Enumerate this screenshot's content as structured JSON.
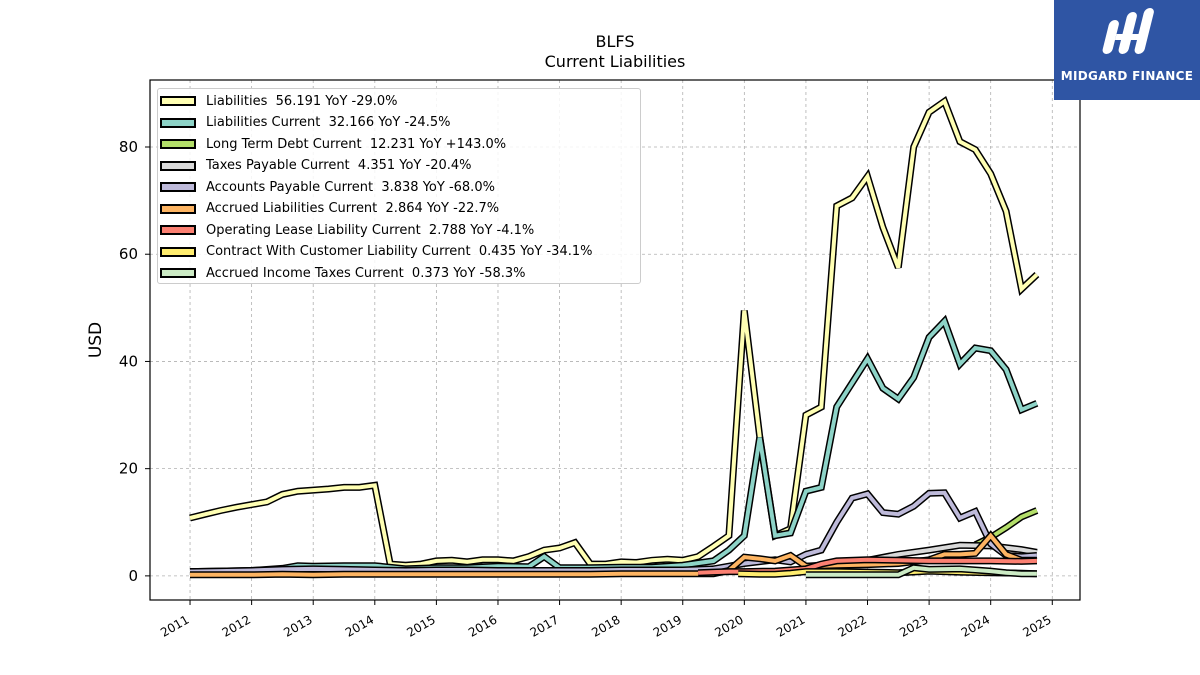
{
  "header": {
    "ticker": "BLFS",
    "subtitle": "Current  Liabilities"
  },
  "logo": {
    "text": "MIDGARD FINANCE",
    "icon": "midgard-logo-icon",
    "bg_color": "#2f55a4"
  },
  "chart_data": {
    "type": "line",
    "title": "BLFS",
    "subtitle": "Current  Liabilities",
    "ylabel": "USD",
    "xlabel": "",
    "xlim": [
      2010.35,
      2025.45
    ],
    "ylim": [
      -4.5,
      92.5
    ],
    "yticks": [
      0,
      20,
      40,
      60,
      80
    ],
    "xticks": [
      "2011",
      "2012",
      "2013",
      "2014",
      "2015",
      "2016",
      "2017",
      "2018",
      "2019",
      "2020",
      "2021",
      "2022",
      "2023",
      "2024",
      "2025"
    ],
    "grid": true,
    "legend_position": "top-left",
    "series": [
      {
        "name": "Liabilities  56.191 YoY -29.0%",
        "color": "#ffffb3",
        "x": [
          2011.0,
          2011.25,
          2011.5,
          2011.75,
          2012.0,
          2012.25,
          2012.5,
          2012.75,
          2013.0,
          2013.25,
          2013.5,
          2013.75,
          2014.0,
          2014.25,
          2014.5,
          2014.75,
          2015.0,
          2015.25,
          2015.5,
          2015.75,
          2016.0,
          2016.25,
          2016.5,
          2016.75,
          2017.0,
          2017.25,
          2017.5,
          2017.75,
          2018.0,
          2018.25,
          2018.5,
          2018.75,
          2019.0,
          2019.25,
          2019.5,
          2019.75,
          2020.0,
          2020.25,
          2020.5,
          2020.75,
          2021.0,
          2021.25,
          2021.5,
          2021.75,
          2022.0,
          2022.25,
          2022.5,
          2022.75,
          2023.0,
          2023.25,
          2023.5,
          2023.75,
          2024.0,
          2024.25,
          2024.5,
          2024.75
        ],
        "y": [
          10.8,
          11.5,
          12.2,
          12.8,
          13.3,
          13.8,
          15.2,
          15.8,
          16.0,
          16.2,
          16.5,
          16.5,
          16.9,
          2.2,
          2.0,
          2.2,
          2.8,
          2.9,
          2.6,
          3.0,
          3.0,
          2.8,
          3.6,
          4.8,
          5.2,
          6.2,
          2.2,
          2.2,
          2.6,
          2.5,
          2.9,
          3.1,
          2.9,
          3.6,
          5.5,
          7.5,
          49.5,
          26.0,
          7.5,
          8.8,
          30.0,
          31.5,
          69.0,
          70.5,
          74.5,
          65.0,
          57.5,
          80.0,
          86.5,
          88.5,
          81.0,
          79.5,
          75.0,
          68.0,
          53.5,
          56.2
        ]
      },
      {
        "name": "Liabilities Current  32.166 YoY -24.5%",
        "color": "#8dd3c7",
        "x": [
          2011.0,
          2011.5,
          2012.0,
          2012.5,
          2012.75,
          2013.0,
          2013.5,
          2014.0,
          2014.5,
          2015.0,
          2015.5,
          2016.0,
          2016.5,
          2016.75,
          2017.0,
          2017.5,
          2018.0,
          2018.5,
          2019.0,
          2019.5,
          2019.75,
          2020.0,
          2020.25,
          2020.5,
          2020.75,
          2021.0,
          2021.25,
          2021.5,
          2021.75,
          2022.0,
          2022.25,
          2022.5,
          2022.75,
          2023.0,
          2023.25,
          2023.5,
          2023.75,
          2024.0,
          2024.25,
          2024.5,
          2024.75
        ],
        "y": [
          0.8,
          0.9,
          1.0,
          1.4,
          1.9,
          1.8,
          1.9,
          1.9,
          1.3,
          1.5,
          1.5,
          1.8,
          1.7,
          3.6,
          1.5,
          1.5,
          1.6,
          1.6,
          2.0,
          2.8,
          4.8,
          7.5,
          25.8,
          7.5,
          8.0,
          15.8,
          16.5,
          31.5,
          36.0,
          40.5,
          35.0,
          33.0,
          37.0,
          44.5,
          47.5,
          39.5,
          42.5,
          42.0,
          38.5,
          31.0,
          32.2
        ]
      },
      {
        "name": "Long Term Debt Current  12.231 YoY +143.0%",
        "color": "#b3de69",
        "x": [
          2023.75,
          2024.0,
          2024.25,
          2024.5,
          2024.75
        ],
        "y": [
          5.8,
          7.2,
          9.0,
          11.0,
          12.2
        ]
      },
      {
        "name": "Taxes Payable Current  4.351 YoY -20.4%",
        "color": "#d9d9d9",
        "x": [
          2021.0,
          2021.5,
          2022.0,
          2022.5,
          2023.0,
          2023.5,
          2024.0,
          2024.5,
          2024.75
        ],
        "y": [
          1.8,
          2.2,
          2.9,
          4.0,
          4.8,
          5.7,
          5.6,
          4.9,
          4.4
        ]
      },
      {
        "name": "Accounts Payable Current  3.838 YoY -68.0%",
        "color": "#bebada",
        "x": [
          2011.0,
          2011.5,
          2012.0,
          2012.5,
          2013.0,
          2013.5,
          2014.0,
          2014.5,
          2015.0,
          2015.5,
          2016.0,
          2016.5,
          2017.0,
          2017.5,
          2018.0,
          2018.5,
          2019.0,
          2019.5,
          2020.0,
          2020.5,
          2020.75,
          2021.0,
          2021.25,
          2021.5,
          2021.75,
          2022.0,
          2022.25,
          2022.5,
          2022.75,
          2023.0,
          2023.25,
          2023.5,
          2023.75,
          2024.0,
          2024.25,
          2024.5,
          2024.75
        ],
        "y": [
          0.8,
          0.9,
          1.0,
          1.2,
          1.3,
          1.2,
          1.1,
          1.0,
          1.1,
          1.1,
          1.0,
          1.0,
          1.0,
          1.0,
          1.1,
          1.1,
          1.1,
          1.3,
          2.3,
          3.0,
          2.6,
          4.0,
          4.8,
          10.0,
          14.5,
          15.3,
          11.8,
          11.5,
          13.0,
          15.4,
          15.5,
          10.8,
          12.0,
          6.0,
          3.8,
          3.6,
          3.8
        ]
      },
      {
        "name": "Accrued Liabilities Current  2.864 YoY -22.7%",
        "color": "#fdb462",
        "x": [
          2011.0,
          2011.5,
          2012.0,
          2012.5,
          2013.0,
          2013.5,
          2014.0,
          2014.5,
          2015.0,
          2015.5,
          2016.0,
          2016.5,
          2017.0,
          2017.5,
          2018.0,
          2018.5,
          2019.0,
          2019.5,
          2019.75,
          2020.0,
          2020.25,
          2020.5,
          2020.75,
          2021.0,
          2021.5,
          2022.0,
          2022.5,
          2023.0,
          2023.25,
          2023.5,
          2023.75,
          2024.0,
          2024.25,
          2024.5,
          2024.75
        ],
        "y": [
          0.2,
          0.2,
          0.2,
          0.3,
          0.2,
          0.3,
          0.3,
          0.3,
          0.3,
          0.3,
          0.3,
          0.3,
          0.3,
          0.3,
          0.4,
          0.4,
          0.4,
          0.4,
          1.0,
          3.5,
          3.2,
          2.8,
          3.8,
          1.8,
          2.0,
          2.1,
          2.3,
          3.0,
          4.0,
          4.0,
          4.2,
          7.5,
          4.0,
          2.9,
          2.9
        ]
      },
      {
        "name": "Operating Lease Liability Current  2.788 YoY -4.1%",
        "color": "#fb8072",
        "x": [
          2019.25,
          2019.5,
          2019.75,
          2020.0,
          2020.5,
          2021.0,
          2021.25,
          2021.5,
          2022.0,
          2022.5,
          2023.0,
          2023.5,
          2024.0,
          2024.5,
          2024.75
        ],
        "y": [
          0.6,
          0.7,
          0.8,
          0.8,
          0.9,
          1.3,
          2.2,
          2.8,
          3.0,
          2.9,
          2.8,
          2.8,
          2.8,
          2.7,
          2.8
        ]
      },
      {
        "name": "Contract With Customer Liability Current  0.435 YoY -34.1%",
        "color": "#ffed6f",
        "x": [
          2019.9,
          2020.25,
          2020.5,
          2020.75,
          2021.0,
          2021.5,
          2022.0,
          2022.5,
          2023.0,
          2023.5,
          2024.0,
          2024.5,
          2024.75
        ],
        "y": [
          0.4,
          0.3,
          0.3,
          0.5,
          0.8,
          0.8,
          0.7,
          0.6,
          0.9,
          0.7,
          0.6,
          0.5,
          0.4
        ]
      },
      {
        "name": "Accrued Income Taxes Current  0.373 YoY -58.3%",
        "color": "#ccebc5",
        "x": [
          2021.0,
          2021.5,
          2022.0,
          2022.5,
          2022.75,
          2023.0,
          2023.5,
          2024.0,
          2024.25,
          2024.5,
          2024.75
        ],
        "y": [
          0.2,
          0.2,
          0.2,
          0.2,
          1.5,
          1.2,
          1.3,
          0.9,
          0.6,
          0.4,
          0.4
        ]
      }
    ]
  }
}
